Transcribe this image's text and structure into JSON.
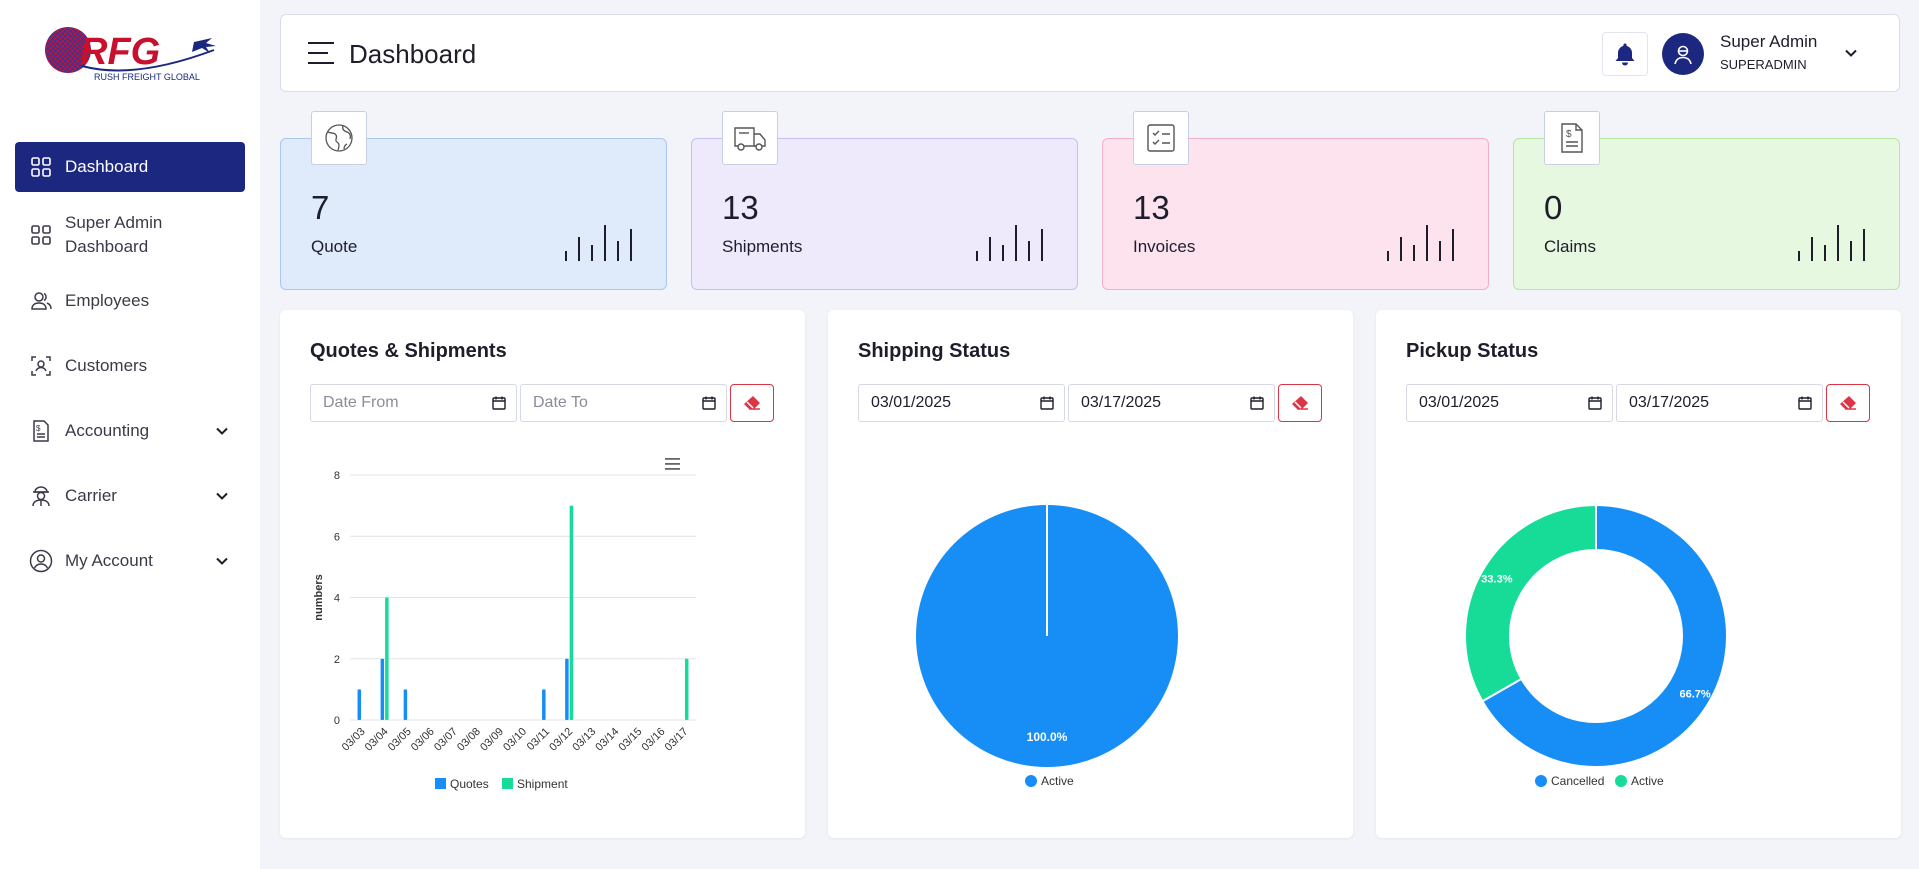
{
  "brand": {
    "logo_text": "RFG",
    "logo_subtext": "RUSH FREIGHT GLOBAL",
    "primary": "#1c2780",
    "logo_red": "#c8102e"
  },
  "sidebar": {
    "items": [
      {
        "label": "Dashboard",
        "icon": "grid-icon",
        "active": true
      },
      {
        "label": "Super Admin Dashboard",
        "icon": "grid-icon"
      },
      {
        "label": "Employees",
        "icon": "users-icon"
      },
      {
        "label": "Customers",
        "icon": "user-scan-icon"
      },
      {
        "label": "Accounting",
        "icon": "invoice-icon",
        "expandable": true
      },
      {
        "label": "Carrier",
        "icon": "carrier-person-icon",
        "expandable": true
      },
      {
        "label": "My Account",
        "icon": "user-circle-icon",
        "expandable": true
      }
    ]
  },
  "header": {
    "title": "Dashboard",
    "user_name": "Super Admin",
    "user_role": "SUPERADMIN"
  },
  "stats": [
    {
      "value": "7",
      "label": "Quote",
      "icon": "globe-icon",
      "bg": "#dfeafb",
      "border": "#a9c8ee"
    },
    {
      "value": "13",
      "label": "Shipments",
      "icon": "truck-icon",
      "bg": "#eeeafc",
      "border": "#c6bff0"
    },
    {
      "value": "13",
      "label": "Invoices",
      "icon": "checklist-icon",
      "bg": "#fde3ee",
      "border": "#f3aecb"
    },
    {
      "value": "0",
      "label": "Claims",
      "icon": "dollar-document-icon",
      "bg": "#e6f8df",
      "border": "#b3e6a0"
    }
  ],
  "panels": {
    "quotes_shipments": {
      "title": "Quotes & Shipments",
      "date_from_placeholder": "Date From",
      "date_to_placeholder": "Date To"
    },
    "shipping_status": {
      "title": "Shipping Status",
      "date_from": "03/01/2025",
      "date_to": "03/17/2025"
    },
    "pickup_status": {
      "title": "Pickup Status",
      "date_from": "03/01/2025",
      "date_to": "03/17/2025"
    }
  },
  "chart_data": [
    {
      "type": "bar",
      "title": "",
      "xlabel": "",
      "ylabel": "numbers",
      "ylim": [
        0,
        8
      ],
      "yticks": [
        0,
        2,
        4,
        6,
        8
      ],
      "categories": [
        "03/03",
        "03/04",
        "03/05",
        "03/06",
        "03/07",
        "03/08",
        "03/09",
        "03/10",
        "03/11",
        "03/12",
        "03/13",
        "03/14",
        "03/15",
        "03/16",
        "03/17"
      ],
      "series": [
        {
          "name": "Quotes",
          "color": "#168ef5",
          "values": [
            1,
            2,
            1,
            0,
            0,
            0,
            0,
            0,
            1,
            2,
            0,
            0,
            0,
            0,
            0
          ]
        },
        {
          "name": "Shipment",
          "color": "#16dc97",
          "values": [
            0,
            4,
            0,
            0,
            0,
            0,
            0,
            0,
            0,
            7,
            0,
            0,
            0,
            0,
            2
          ]
        }
      ],
      "legend": "bottom"
    },
    {
      "type": "pie",
      "slices": [
        {
          "name": "Active",
          "value": 100.0,
          "label": "100.0%",
          "color": "#168ef5"
        }
      ],
      "legend": "bottom"
    },
    {
      "type": "pie",
      "donut": true,
      "slices": [
        {
          "name": "Cancelled",
          "value": 66.7,
          "label": "66.7%",
          "color": "#168ef5"
        },
        {
          "name": "Active",
          "value": 33.3,
          "label": "33.3%",
          "color": "#16dc97"
        }
      ],
      "legend": "bottom"
    }
  ]
}
